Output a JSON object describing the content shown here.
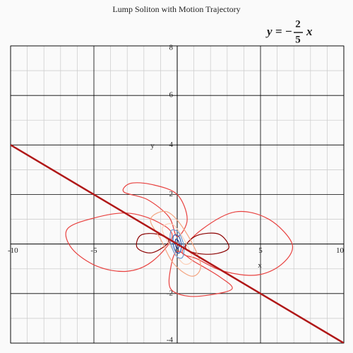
{
  "chart_data": {
    "type": "contour",
    "title": "Lump Soliton with Motion Trajectory",
    "xlabel": "x",
    "ylabel": "y",
    "xlim": [
      -10,
      10
    ],
    "ylim": [
      -4,
      8
    ],
    "xticks": [
      -10,
      -5,
      0,
      5,
      10
    ],
    "yticks": [
      -4,
      -2,
      2,
      4,
      6,
      8
    ],
    "xgrid_minor": [
      -9,
      -8,
      -7,
      -6,
      -4,
      -3,
      -2,
      -1,
      1,
      2,
      3,
      4,
      6,
      7,
      8,
      9
    ],
    "ygrid_minor": [
      -3,
      -1,
      1,
      3,
      5,
      7
    ],
    "grid": true,
    "annotation": {
      "lhs": "y",
      "eq": "=",
      "sign": "−",
      "num": "2",
      "den": "5",
      "var": "x"
    },
    "trajectory": {
      "color": "#b01818",
      "x": [
        -10,
        10
      ],
      "y": [
        4,
        -4
      ]
    },
    "contours": [
      {
        "color": "#e8413f",
        "x": [
          -0.3,
          -1.2,
          -3,
          -5,
          -6.6,
          -6.3,
          -4.8,
          -3,
          -1.5
        ],
        "y": [
          0.3,
          0.9,
          1.25,
          1.05,
          0.6,
          -0.2,
          -0.9,
          -1.1,
          -0.7
        ]
      },
      {
        "color": "#e8413f",
        "x": [
          0.3,
          1.5,
          3.5,
          5.5,
          6.9,
          6.3,
          4.8,
          2.8,
          1.2
        ],
        "y": [
          -0.3,
          0.6,
          1.3,
          1.0,
          0.0,
          -0.8,
          -1.25,
          -1.1,
          -0.6
        ]
      },
      {
        "color": "#e8413f",
        "x": [
          0,
          -0.5,
          -1.8,
          -3.2,
          -2.8,
          -1.5,
          0,
          0.6
        ],
        "y": [
          0.3,
          1.1,
          1.8,
          2.1,
          2.45,
          2.4,
          2.0,
          1.0
        ]
      },
      {
        "color": "#e8413f",
        "x": [
          0,
          -0.4,
          -0.4,
          0.6,
          2.0,
          3.3,
          2.5,
          1.0
        ],
        "y": [
          -0.3,
          -1.0,
          -1.8,
          -2.1,
          -2.05,
          -1.8,
          -1.3,
          -0.7
        ]
      },
      {
        "color": "#8b0000",
        "x": [
          -0.5,
          -1.2,
          -2.2,
          -2.4,
          -1.5
        ],
        "y": [
          0.1,
          0.4,
          0.35,
          -0.15,
          -0.35
        ]
      },
      {
        "color": "#8b0000",
        "x": [
          0.5,
          1.2,
          2.5,
          3.1,
          2.2,
          1.0
        ],
        "y": [
          -0.1,
          0.35,
          0.4,
          -0.15,
          -0.4,
          -0.35
        ]
      },
      {
        "color": "#f4a582",
        "x": [
          -1.6,
          -0.6,
          0.5,
          1.4,
          0.9,
          -0.2,
          -1.0
        ],
        "y": [
          1.0,
          1.3,
          0.5,
          -0.8,
          -1.3,
          -0.8,
          0.2
        ]
      },
      {
        "color": "#fbd0b9",
        "x": [
          -0.9,
          -0.3,
          0.4,
          0.9,
          0.4,
          -0.3
        ],
        "y": [
          0.6,
          0.8,
          0.2,
          -0.6,
          -0.8,
          -0.2
        ]
      },
      {
        "color": "#6f9bd1",
        "x": [
          -0.35,
          0.1,
          0.4,
          0.3,
          -0.1,
          -0.4
        ],
        "y": [
          0.55,
          0.45,
          -0.1,
          -0.55,
          -0.45,
          0.1
        ]
      },
      {
        "color": "#2b5fb8",
        "x": [
          -0.2,
          0.1,
          0.25,
          0.15,
          -0.1,
          -0.25
        ],
        "y": [
          0.35,
          0.3,
          -0.05,
          -0.35,
          -0.3,
          0.05
        ]
      },
      {
        "color": "#1a3a9a",
        "x": [
          -0.1,
          0.05,
          0.12,
          0.05,
          -0.08
        ],
        "y": [
          0.18,
          0.15,
          -0.02,
          -0.18,
          -0.1
        ]
      }
    ]
  }
}
